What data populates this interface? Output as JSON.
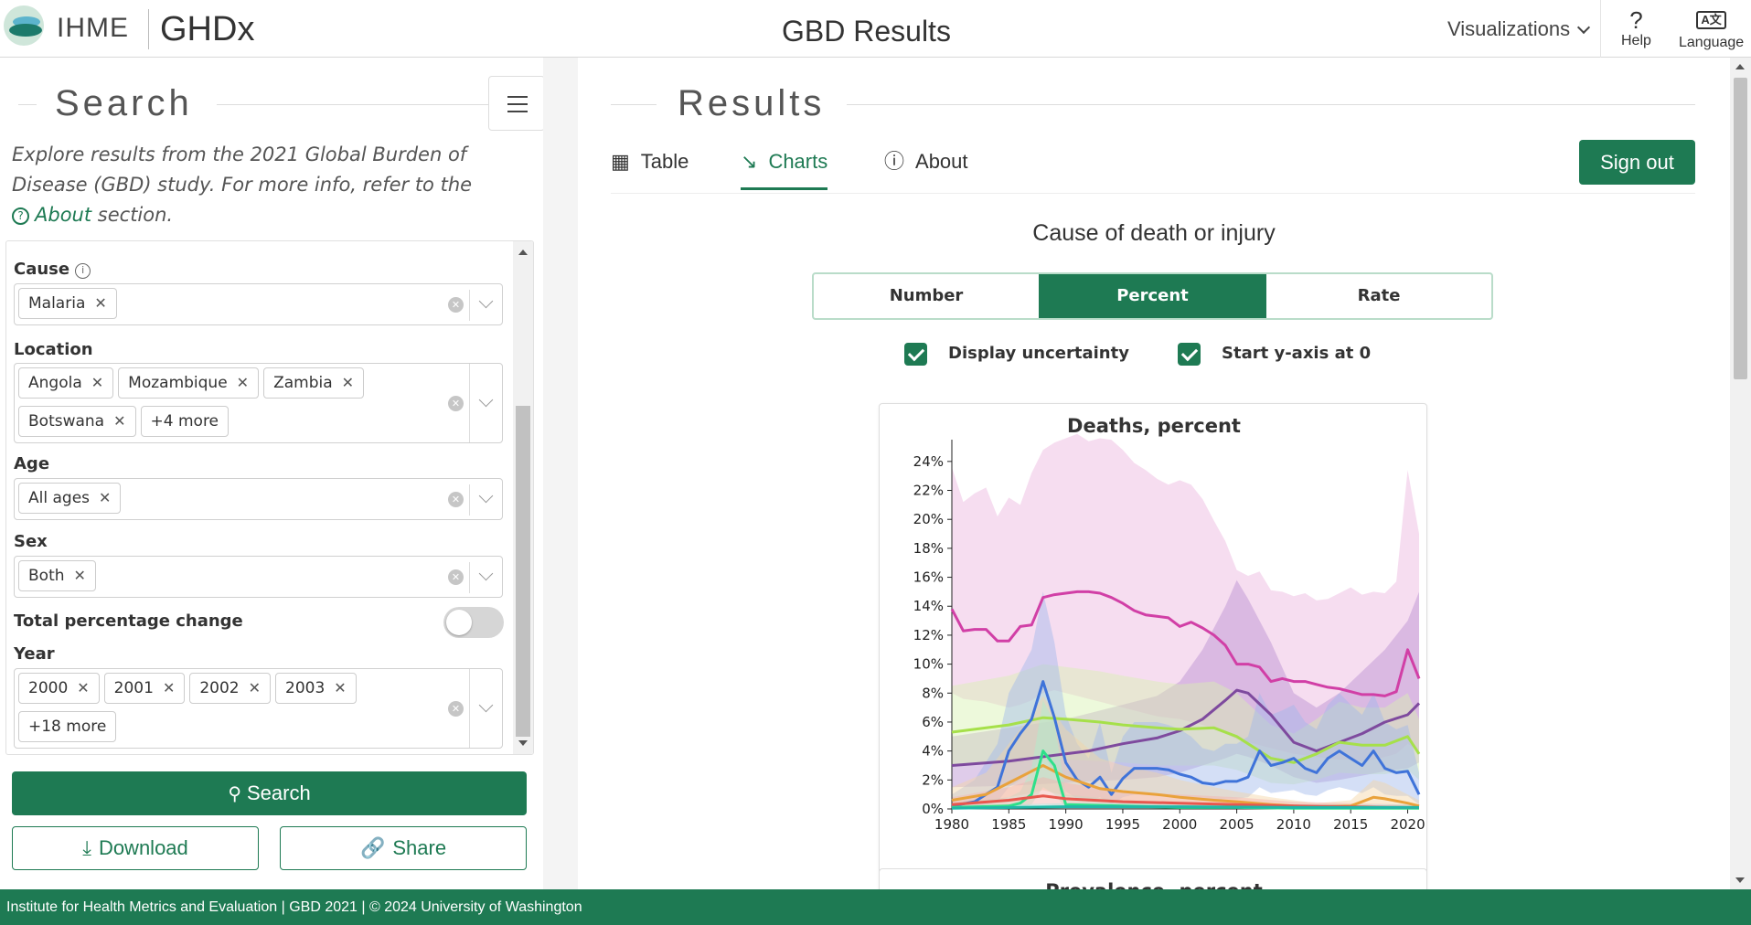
{
  "header": {
    "org": "IHME",
    "product": "GHDx",
    "title": "GBD Results",
    "visualizations_label": "Visualizations",
    "help_label": "Help",
    "help_icon": "?",
    "language_label": "Language",
    "language_icon": "A文"
  },
  "search_panel": {
    "title": "Search",
    "intro_text": "Explore results from the 2021 Global Burden of Disease (GBD) study. For more info, refer to the",
    "about_link": "About",
    "intro_suffix": "section.",
    "filters": {
      "cause": {
        "label": "Cause",
        "tags": [
          "Malaria"
        ]
      },
      "location": {
        "label": "Location",
        "tags": [
          "Angola",
          "Mozambique",
          "Zambia",
          "Botswana"
        ],
        "more": "+4 more"
      },
      "age": {
        "label": "Age",
        "tags": [
          "All ages"
        ]
      },
      "sex": {
        "label": "Sex",
        "tags": [
          "Both"
        ]
      },
      "total_change": {
        "label": "Total percentage change",
        "enabled": false
      },
      "year": {
        "label": "Year",
        "tags": [
          "2000",
          "2001",
          "2002",
          "2003"
        ],
        "more": "+18 more"
      }
    },
    "search_button": "Search",
    "download_button": "Download",
    "share_button": "Share"
  },
  "results_panel": {
    "title": "Results",
    "tabs": [
      {
        "label": "Table",
        "icon": "table-icon",
        "active": false
      },
      {
        "label": "Charts",
        "icon": "line-chart-icon",
        "active": true
      },
      {
        "label": "About",
        "icon": "question-circle-icon",
        "active": false
      }
    ],
    "sign_out": "Sign out",
    "measure_title": "Cause of death or injury",
    "metric_options": [
      "Number",
      "Percent",
      "Rate"
    ],
    "selected_metric": "Percent",
    "display_uncertainty": {
      "label": "Display uncertainty",
      "checked": true
    },
    "start_y_zero": {
      "label": "Start y-axis at 0",
      "checked": true
    },
    "next_card_title": "Prevalence, percent"
  },
  "chart_data": {
    "type": "line",
    "title": "Deaths, percent",
    "x_ticks": [
      1980,
      1985,
      1990,
      1995,
      2000,
      2005,
      2010,
      2015,
      2020
    ],
    "y_ticks": [
      "0%",
      "2%",
      "4%",
      "6%",
      "8%",
      "10%",
      "12%",
      "14%",
      "16%",
      "18%",
      "20%",
      "22%",
      "24%"
    ],
    "ylim": [
      0,
      25
    ],
    "xlim": [
      1980,
      2021
    ],
    "uncertainty_shown": true,
    "series": [
      {
        "color": "#d13fa6",
        "band_color": "#eab3dd",
        "x": [
          1980,
          1981,
          1982,
          1983,
          1984,
          1985,
          1986,
          1987,
          1988,
          1989,
          1990,
          1991,
          1992,
          1993,
          1994,
          1995,
          1996,
          1997,
          1998,
          1999,
          2000,
          2001,
          2002,
          2003,
          2004,
          2005,
          2006,
          2007,
          2008,
          2009,
          2010,
          2011,
          2012,
          2013,
          2014,
          2015,
          2016,
          2017,
          2018,
          2019,
          2020,
          2021
        ],
        "y": [
          13.8,
          12.3,
          12.4,
          12.4,
          11.6,
          11.6,
          12.6,
          12.7,
          14.6,
          14.8,
          14.9,
          15.0,
          15.0,
          14.9,
          14.6,
          14.2,
          13.7,
          13.4,
          13.3,
          13.2,
          12.6,
          12.9,
          12.5,
          12.0,
          11.3,
          10.0,
          10.0,
          9.8,
          8.8,
          9.0,
          8.8,
          8.8,
          8.6,
          8.4,
          8.3,
          8.1,
          7.9,
          7.9,
          7.8,
          8.1,
          11.0,
          9.0
        ],
        "lower": [
          8.0,
          7.6,
          7.5,
          7.4,
          7.2,
          7.0,
          7.2,
          7.5,
          8.0,
          8.2,
          8.0,
          7.8,
          7.6,
          7.4,
          7.2,
          7.0,
          6.8,
          6.6,
          6.4,
          6.3,
          6.2,
          6.0,
          5.8,
          5.5,
          5.2,
          4.8,
          4.6,
          4.4,
          4.2,
          4.0,
          3.8,
          3.7,
          3.6,
          3.5,
          3.4,
          3.4,
          3.3,
          3.4,
          3.6,
          3.8,
          4.5,
          4.0
        ],
        "upper": [
          23.6,
          21.2,
          21.8,
          22.2,
          20.2,
          21.5,
          21.0,
          23.2,
          24.8,
          25.3,
          25.6,
          25.9,
          25.4,
          25.6,
          25.5,
          24.8,
          23.9,
          23.4,
          22.8,
          22.4,
          22.7,
          22.4,
          21.4,
          19.9,
          18.5,
          16.5,
          16.1,
          16.4,
          15.1,
          15.0,
          14.7,
          14.9,
          14.4,
          14.5,
          14.9,
          15.3,
          14.8,
          15.0,
          14.9,
          15.7,
          23.4,
          19.0
        ]
      },
      {
        "color": "#7e4a9e",
        "band_color": "#b98ed0",
        "x": [
          1980,
          1985,
          1990,
          1992,
          1995,
          1998,
          2000,
          2002,
          2004,
          2005,
          2006,
          2008,
          2010,
          2012,
          2014,
          2016,
          2018,
          2020,
          2021
        ],
        "y": [
          3.0,
          3.3,
          3.8,
          4.0,
          4.5,
          4.9,
          5.4,
          6.2,
          7.5,
          8.2,
          8.0,
          6.5,
          4.6,
          4.0,
          4.6,
          5.2,
          6.0,
          6.5,
          7.3
        ],
        "lower": [
          1.5,
          1.6,
          1.8,
          1.9,
          2.0,
          2.2,
          2.5,
          3.0,
          3.5,
          3.8,
          3.6,
          3.0,
          2.2,
          1.8,
          2.0,
          2.3,
          2.6,
          2.8,
          3.2
        ],
        "upper": [
          5.0,
          5.6,
          6.2,
          6.6,
          7.2,
          7.8,
          8.8,
          11.0,
          14.0,
          15.8,
          14.5,
          11.5,
          8.0,
          7.0,
          8.0,
          9.5,
          11.0,
          13.0,
          15.0
        ]
      },
      {
        "color": "#a6e04a",
        "band_color": "#d8f2b0",
        "x": [
          1980,
          1985,
          1988,
          1990,
          1993,
          1995,
          1998,
          2000,
          2003,
          2005,
          2008,
          2010,
          2012,
          2014,
          2016,
          2018,
          2020,
          2021
        ],
        "y": [
          5.3,
          5.8,
          6.3,
          6.2,
          6.0,
          5.8,
          5.6,
          5.5,
          5.6,
          5.0,
          3.5,
          3.2,
          3.8,
          4.6,
          4.4,
          4.4,
          5.0,
          3.8
        ],
        "lower": [
          3.0,
          3.2,
          3.5,
          3.4,
          3.3,
          3.2,
          3.0,
          3.0,
          3.0,
          2.7,
          1.8,
          1.7,
          2.0,
          2.5,
          2.4,
          2.4,
          2.7,
          2.0
        ],
        "upper": [
          8.5,
          9.2,
          10.0,
          9.8,
          9.5,
          9.2,
          8.8,
          8.6,
          8.8,
          8.0,
          5.8,
          5.2,
          6.2,
          7.4,
          7.0,
          7.0,
          8.0,
          6.2
        ]
      },
      {
        "color": "#3f73d9",
        "band_color": "#9fb8ea",
        "x": [
          1980,
          1982,
          1984,
          1985,
          1986,
          1987,
          1988,
          1989,
          1990,
          1991,
          1992,
          1993,
          1994,
          1995,
          1996,
          1997,
          1998,
          1999,
          2000,
          2001,
          2002,
          2003,
          2004,
          2005,
          2006,
          2007,
          2008,
          2009,
          2010,
          2011,
          2012,
          2013,
          2014,
          2015,
          2016,
          2017,
          2018,
          2019,
          2020,
          2021
        ],
        "y": [
          0.2,
          0.5,
          1.5,
          4.0,
          5.2,
          6.2,
          8.8,
          6.3,
          3.2,
          2.0,
          1.5,
          2.2,
          1.0,
          2.1,
          2.8,
          2.8,
          2.8,
          2.7,
          2.4,
          2.2,
          1.8,
          1.7,
          1.9,
          1.9,
          2.2,
          4.0,
          3.0,
          3.2,
          3.5,
          2.8,
          2.5,
          3.5,
          4.0,
          3.5,
          3.0,
          4.0,
          2.8,
          2.5,
          2.6,
          1.0
        ],
        "lower": [
          0.0,
          0.1,
          0.5,
          1.5,
          2.0,
          2.5,
          3.8,
          2.5,
          1.2,
          0.7,
          0.5,
          0.8,
          0.3,
          0.8,
          1.0,
          1.0,
          1.0,
          1.0,
          0.9,
          0.8,
          0.6,
          0.6,
          0.7,
          0.7,
          0.8,
          1.5,
          1.1,
          1.2,
          1.3,
          1.0,
          0.9,
          1.3,
          1.5,
          1.3,
          1.1,
          1.5,
          1.0,
          0.9,
          0.9,
          0.3
        ],
        "upper": [
          1.0,
          2.0,
          4.5,
          8.0,
          9.5,
          11.0,
          15.0,
          11.5,
          6.5,
          4.5,
          3.5,
          6.0,
          2.5,
          5.0,
          6.0,
          6.0,
          6.0,
          5.8,
          5.5,
          5.0,
          4.2,
          4.0,
          4.5,
          4.5,
          5.0,
          8.0,
          6.5,
          6.8,
          7.2,
          6.0,
          5.5,
          7.2,
          8.0,
          7.2,
          6.5,
          8.0,
          6.0,
          5.5,
          5.8,
          2.5
        ]
      },
      {
        "color": "#e9a23b",
        "band_color": "#f4d4a4",
        "x": [
          1980,
          1983,
          1985,
          1987,
          1988,
          1990,
          1993,
          1995,
          1998,
          2000,
          2003,
          2005,
          2008,
          2010,
          2012,
          2015,
          2017,
          2018,
          2020,
          2021
        ],
        "y": [
          0.6,
          1.0,
          1.8,
          2.6,
          3.0,
          2.2,
          1.4,
          1.2,
          1.0,
          0.8,
          0.6,
          0.5,
          0.3,
          0.2,
          0.15,
          0.2,
          0.8,
          0.7,
          0.4,
          0.2
        ],
        "lower": [
          0.2,
          0.4,
          0.8,
          1.1,
          1.3,
          0.9,
          0.6,
          0.5,
          0.4,
          0.3,
          0.2,
          0.2,
          0.1,
          0.1,
          0.05,
          0.1,
          0.3,
          0.3,
          0.1,
          0.05
        ],
        "upper": [
          1.5,
          2.5,
          4.5,
          6.5,
          7.8,
          5.5,
          3.5,
          3.0,
          2.5,
          2.0,
          1.5,
          1.2,
          0.8,
          0.6,
          0.4,
          0.6,
          2.0,
          1.8,
          1.0,
          0.6
        ]
      },
      {
        "color": "#2ee08a",
        "band_color": "#aef0cd",
        "x": [
          1980,
          1985,
          1986,
          1987,
          1988,
          1989,
          1990,
          1995,
          2000,
          2005,
          2010,
          2015,
          2020,
          2021
        ],
        "y": [
          0.1,
          0.2,
          0.4,
          1.0,
          4.0,
          3.0,
          0.3,
          0.2,
          0.1,
          0.1,
          0.05,
          0.05,
          0.05,
          0.05
        ],
        "lower": [
          0.0,
          0.0,
          0.1,
          0.3,
          1.5,
          1.0,
          0.1,
          0.05,
          0.0,
          0.0,
          0.0,
          0.0,
          0.0,
          0.0
        ],
        "upper": [
          0.4,
          0.8,
          1.2,
          2.8,
          7.5,
          6.0,
          1.0,
          0.6,
          0.4,
          0.3,
          0.2,
          0.2,
          0.2,
          0.2
        ]
      },
      {
        "color": "#e8574e",
        "band_color": "#f3b2ad",
        "x": [
          1980,
          1985,
          1988,
          1990,
          1995,
          2000,
          2005,
          2010,
          2015,
          2020,
          2021
        ],
        "y": [
          0.3,
          0.6,
          0.9,
          0.7,
          0.5,
          0.4,
          0.3,
          0.2,
          0.15,
          0.1,
          0.1
        ],
        "lower": [
          0.1,
          0.2,
          0.3,
          0.2,
          0.2,
          0.1,
          0.1,
          0.05,
          0.05,
          0.0,
          0.0
        ],
        "upper": [
          0.8,
          1.5,
          2.2,
          1.8,
          1.2,
          1.0,
          0.8,
          0.5,
          0.4,
          0.3,
          0.3
        ]
      },
      {
        "color": "#1fb8a8",
        "band_color": "#a6e5de",
        "x": [
          1980,
          1990,
          2000,
          2010,
          2021
        ],
        "y": [
          0.05,
          0.15,
          0.15,
          0.1,
          0.1
        ],
        "lower": [
          0.0,
          0.05,
          0.05,
          0.0,
          0.0
        ],
        "upper": [
          0.2,
          0.4,
          0.4,
          0.3,
          0.3
        ]
      }
    ]
  },
  "footer": {
    "text": "Institute for Health Metrics and Evaluation   |   GBD 2021   |   © 2024 University of Washington"
  },
  "colors": {
    "brand_green": "#1e7a53",
    "toggle_off": "#d6d6d6"
  }
}
